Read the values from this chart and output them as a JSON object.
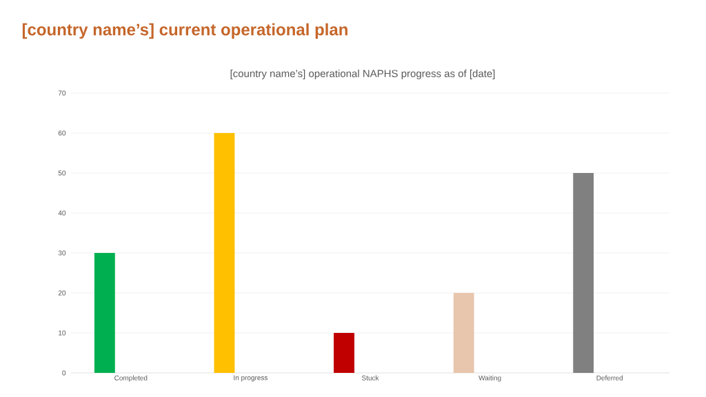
{
  "chart_data": {
    "type": "bar",
    "title": "[country name’s] current operational plan",
    "subtitle": "[country name’s] operational NAPHS progress as of [date]",
    "categories": [
      "Completed",
      "In progress",
      "Stuck",
      "Waiting",
      "Deferred"
    ],
    "values": [
      30,
      60,
      10,
      20,
      50
    ],
    "colors": [
      "#00b050",
      "#ffc000",
      "#c00000",
      "#e8c5ad",
      "#808080"
    ],
    "ylim": [
      0,
      70
    ],
    "yticks": [
      0,
      10,
      20,
      30,
      40,
      50,
      60,
      70
    ],
    "grid": "y"
  }
}
